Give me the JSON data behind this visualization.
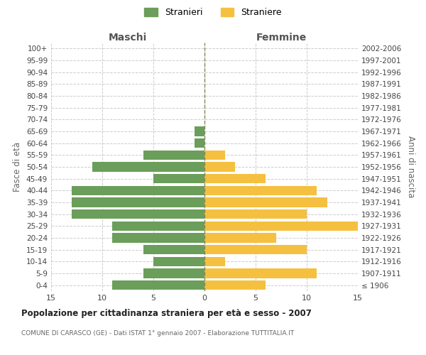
{
  "age_groups": [
    "100+",
    "95-99",
    "90-94",
    "85-89",
    "80-84",
    "75-79",
    "70-74",
    "65-69",
    "60-64",
    "55-59",
    "50-54",
    "45-49",
    "40-44",
    "35-39",
    "30-34",
    "25-29",
    "20-24",
    "15-19",
    "10-14",
    "5-9",
    "0-4"
  ],
  "birth_years": [
    "≤ 1906",
    "1907-1911",
    "1912-1916",
    "1917-1921",
    "1922-1926",
    "1927-1931",
    "1932-1936",
    "1937-1941",
    "1942-1946",
    "1947-1951",
    "1952-1956",
    "1957-1961",
    "1962-1966",
    "1967-1971",
    "1972-1976",
    "1977-1981",
    "1982-1986",
    "1987-1991",
    "1992-1996",
    "1997-2001",
    "2002-2006"
  ],
  "males": [
    0,
    0,
    0,
    0,
    0,
    0,
    0,
    1,
    1,
    6,
    11,
    5,
    13,
    13,
    13,
    9,
    9,
    6,
    5,
    6,
    9
  ],
  "females": [
    0,
    0,
    0,
    0,
    0,
    0,
    0,
    0,
    0,
    2,
    3,
    6,
    11,
    12,
    10,
    15,
    7,
    10,
    2,
    11,
    6
  ],
  "male_color": "#6a9e5a",
  "female_color": "#f5c040",
  "background_color": "#ffffff",
  "grid_color": "#cccccc",
  "title": "Popolazione per cittadinanza straniera per età e sesso - 2007",
  "subtitle": "COMUNE DI CARASCO (GE) - Dati ISTAT 1° gennaio 2007 - Elaborazione TUTTITALIA.IT",
  "xlabel_left": "Maschi",
  "xlabel_right": "Femmine",
  "ylabel_left": "Fasce di età",
  "ylabel_right": "Anni di nascita",
  "legend_male": "Stranieri",
  "legend_female": "Straniere",
  "xlim": 15,
  "bar_height": 0.8
}
